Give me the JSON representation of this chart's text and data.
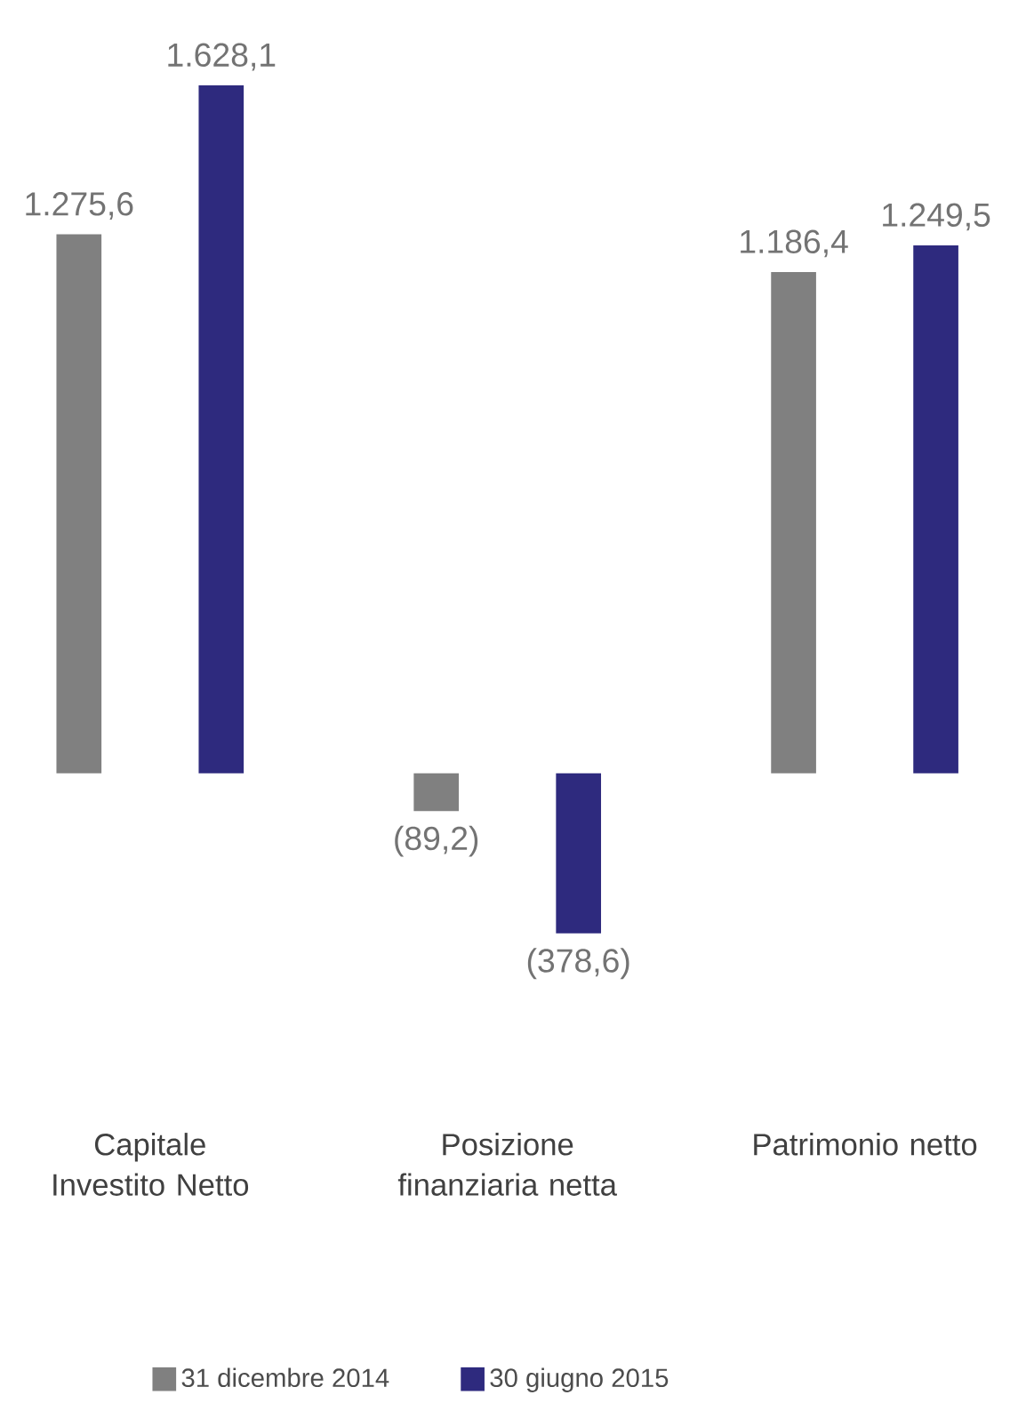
{
  "chart_data": {
    "type": "bar",
    "categories": [
      "Capitale Investito Netto",
      "Posizione finanziaria netta",
      "Patrimonio netto"
    ],
    "series": [
      {
        "name": "31 dicembre 2014",
        "color": "#808080",
        "values": [
          1275.6,
          -89.2,
          1186.4
        ],
        "value_labels": [
          "1.275,6",
          "(89,2)",
          "1.186,4"
        ]
      },
      {
        "name": "30 giugno 2015",
        "color": "#2e2a7e",
        "values": [
          1628.1,
          -378.6,
          1249.5
        ],
        "value_labels": [
          "1.628,1",
          "(378,6)",
          "1.249,5"
        ]
      }
    ],
    "legend": "bottom"
  }
}
